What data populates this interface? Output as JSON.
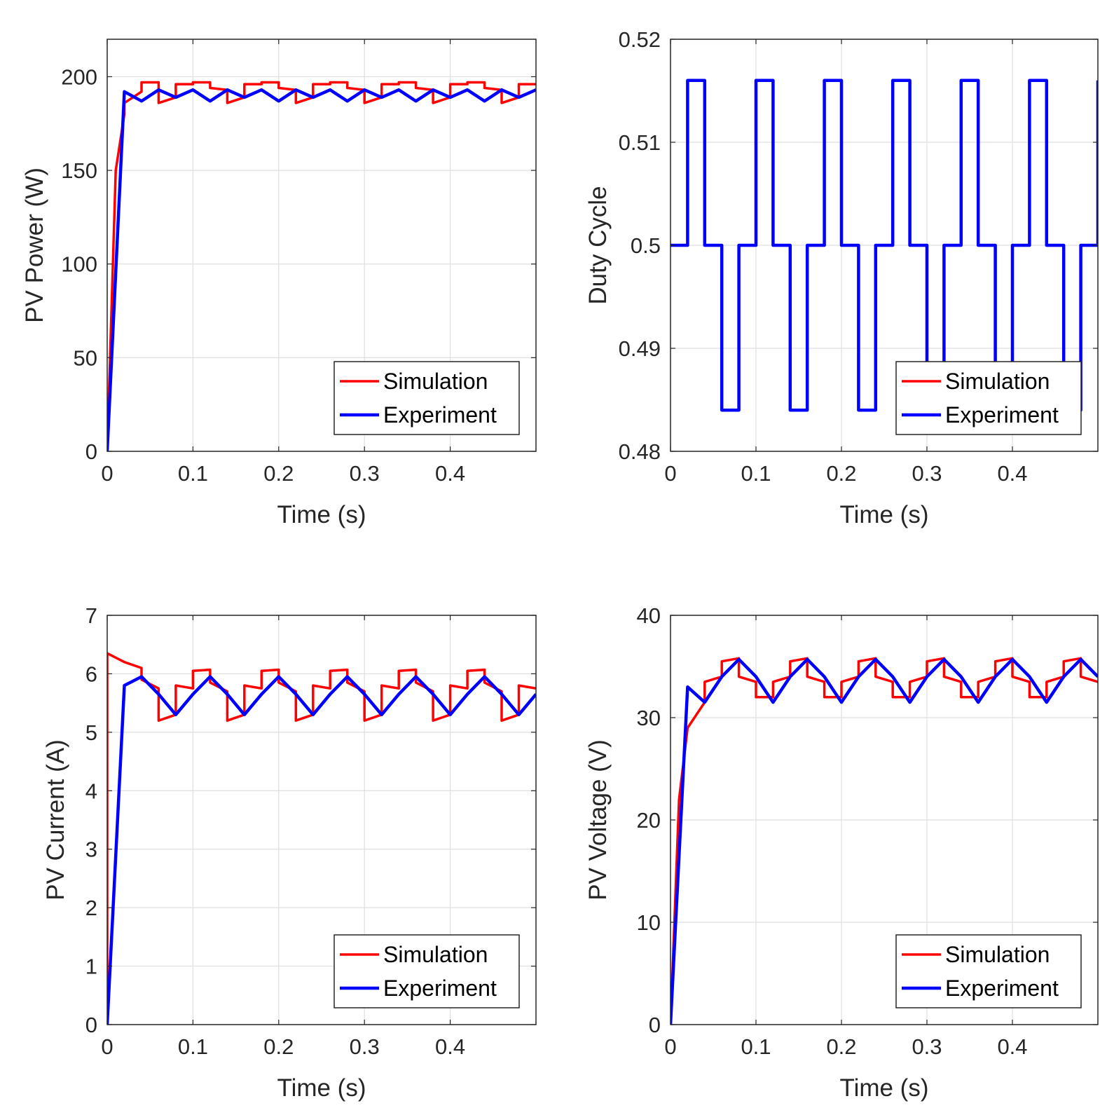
{
  "colors": {
    "simulation": "#ff0000",
    "experiment": "#0000ff"
  },
  "chart_data": [
    {
      "type": "line",
      "xlabel": "Time (s)",
      "ylabel": "PV Power (W)",
      "xlim": [
        0,
        0.5
      ],
      "ylim": [
        0,
        220
      ],
      "xticks": [
        0,
        0.1,
        0.2,
        0.3,
        0.4
      ],
      "xtick_labels": [
        "0",
        "0.1",
        "0.2",
        "0.3",
        "0.4"
      ],
      "yticks": [
        0,
        50,
        100,
        150,
        200
      ],
      "ytick_labels": [
        "0",
        "50",
        "100",
        "150",
        "200"
      ],
      "grid": true,
      "legend": "bottom-right",
      "step": false,
      "series": [
        {
          "name": "Simulation",
          "points": [
            [
              0,
              0
            ],
            [
              0.01,
              150
            ],
            [
              0.02,
              180
            ],
            [
              0.02,
              186
            ],
            [
              0.04,
              192
            ],
            [
              0.04,
              197
            ],
            [
              0.06,
              197
            ],
            [
              0.06,
              186
            ],
            [
              0.08,
              189
            ],
            [
              0.08,
              196
            ],
            [
              0.1,
              196
            ],
            [
              0.1,
              197
            ],
            [
              0.12,
              197
            ],
            [
              0.12,
              194
            ],
            [
              0.14,
              193
            ],
            [
              0.14,
              186
            ],
            [
              0.16,
              189
            ],
            [
              0.16,
              196
            ],
            [
              0.18,
              196
            ],
            [
              0.18,
              197
            ],
            [
              0.2,
              197
            ],
            [
              0.2,
              194
            ],
            [
              0.22,
              193
            ],
            [
              0.22,
              186
            ],
            [
              0.24,
              189
            ],
            [
              0.24,
              196
            ],
            [
              0.26,
              196
            ],
            [
              0.26,
              197
            ],
            [
              0.28,
              197
            ],
            [
              0.28,
              194
            ],
            [
              0.3,
              193
            ],
            [
              0.3,
              186
            ],
            [
              0.32,
              189
            ],
            [
              0.32,
              196
            ],
            [
              0.34,
              196
            ],
            [
              0.34,
              197
            ],
            [
              0.36,
              197
            ],
            [
              0.36,
              194
            ],
            [
              0.38,
              193
            ],
            [
              0.38,
              186
            ],
            [
              0.4,
              189
            ],
            [
              0.4,
              196
            ],
            [
              0.42,
              196
            ],
            [
              0.42,
              197
            ],
            [
              0.44,
              197
            ],
            [
              0.44,
              194
            ],
            [
              0.46,
              193
            ],
            [
              0.46,
              186
            ],
            [
              0.48,
              189
            ],
            [
              0.48,
              196
            ],
            [
              0.5,
              196
            ]
          ]
        },
        {
          "name": "Experiment",
          "x": [
            0,
            0.02,
            0.04,
            0.06,
            0.08,
            0.1,
            0.12,
            0.14,
            0.16,
            0.18,
            0.2,
            0.22,
            0.24,
            0.26,
            0.28,
            0.3,
            0.32,
            0.34,
            0.36,
            0.38,
            0.4,
            0.42,
            0.44,
            0.46,
            0.48,
            0.5
          ],
          "values": [
            0,
            192,
            187,
            193,
            189,
            193,
            187,
            193,
            189,
            193,
            187,
            193,
            189,
            193,
            187,
            193,
            189,
            193,
            187,
            193,
            189,
            193,
            187,
            193,
            189,
            193
          ]
        }
      ]
    },
    {
      "type": "line",
      "xlabel": "Time (s)",
      "ylabel": "Duty Cycle",
      "xlim": [
        0,
        0.5
      ],
      "ylim": [
        0.48,
        0.52
      ],
      "xticks": [
        0,
        0.1,
        0.2,
        0.3,
        0.4
      ],
      "xtick_labels": [
        "0",
        "0.1",
        "0.2",
        "0.3",
        "0.4"
      ],
      "yticks": [
        0.48,
        0.49,
        0.5,
        0.51,
        0.52
      ],
      "ytick_labels": [
        "0.48",
        "0.49",
        "0.5",
        "0.51",
        "0.52"
      ],
      "grid": true,
      "legend": "bottom-right",
      "step": true,
      "series": [
        {
          "name": "Simulation",
          "x": [
            0,
            0.02,
            0.04,
            0.06,
            0.08,
            0.1,
            0.12,
            0.14,
            0.16,
            0.18,
            0.2,
            0.22,
            0.24,
            0.26,
            0.28,
            0.3,
            0.32,
            0.34,
            0.36,
            0.38,
            0.4,
            0.42,
            0.44,
            0.46,
            0.48,
            0.5
          ],
          "values": [
            0.5,
            0.516,
            0.5,
            0.484,
            0.5,
            0.516,
            0.5,
            0.484,
            0.5,
            0.516,
            0.5,
            0.484,
            0.5,
            0.516,
            0.5,
            0.484,
            0.5,
            0.516,
            0.5,
            0.484,
            0.5,
            0.516,
            0.5,
            0.484,
            0.5,
            0.5
          ]
        },
        {
          "name": "Experiment",
          "x": [
            0,
            0.02,
            0.04,
            0.06,
            0.08,
            0.1,
            0.12,
            0.14,
            0.16,
            0.18,
            0.2,
            0.22,
            0.24,
            0.26,
            0.28,
            0.3,
            0.32,
            0.34,
            0.36,
            0.38,
            0.4,
            0.42,
            0.44,
            0.46,
            0.48,
            0.5
          ],
          "values": [
            0.5,
            0.516,
            0.5,
            0.484,
            0.5,
            0.516,
            0.5,
            0.484,
            0.5,
            0.516,
            0.5,
            0.484,
            0.5,
            0.516,
            0.5,
            0.484,
            0.5,
            0.516,
            0.5,
            0.484,
            0.5,
            0.516,
            0.5,
            0.484,
            0.5,
            0.516
          ]
        }
      ]
    },
    {
      "type": "line",
      "xlabel": "Time (s)",
      "ylabel": "PV Current (A)",
      "xlim": [
        0,
        0.5
      ],
      "ylim": [
        0,
        7
      ],
      "xticks": [
        0,
        0.1,
        0.2,
        0.3,
        0.4
      ],
      "xtick_labels": [
        "0",
        "0.1",
        "0.2",
        "0.3",
        "0.4"
      ],
      "yticks": [
        0,
        1,
        2,
        3,
        4,
        5,
        6,
        7
      ],
      "ytick_labels": [
        "0",
        "1",
        "2",
        "3",
        "4",
        "5",
        "6",
        "7"
      ],
      "grid": true,
      "legend": "bottom-right",
      "step": false,
      "series": [
        {
          "name": "Simulation",
          "points": [
            [
              0,
              0
            ],
            [
              0,
              6.35
            ],
            [
              0.02,
              6.2
            ],
            [
              0.04,
              6.1
            ],
            [
              0.04,
              5.9
            ],
            [
              0.06,
              5.75
            ],
            [
              0.06,
              5.2
            ],
            [
              0.08,
              5.3
            ],
            [
              0.08,
              5.8
            ],
            [
              0.1,
              5.75
            ],
            [
              0.1,
              6.05
            ],
            [
              0.12,
              6.07
            ],
            [
              0.12,
              5.85
            ],
            [
              0.14,
              5.7
            ],
            [
              0.14,
              5.2
            ],
            [
              0.16,
              5.3
            ],
            [
              0.16,
              5.8
            ],
            [
              0.18,
              5.75
            ],
            [
              0.18,
              6.05
            ],
            [
              0.2,
              6.07
            ],
            [
              0.2,
              5.85
            ],
            [
              0.22,
              5.7
            ],
            [
              0.22,
              5.2
            ],
            [
              0.24,
              5.3
            ],
            [
              0.24,
              5.8
            ],
            [
              0.26,
              5.75
            ],
            [
              0.26,
              6.05
            ],
            [
              0.28,
              6.07
            ],
            [
              0.28,
              5.85
            ],
            [
              0.3,
              5.7
            ],
            [
              0.3,
              5.2
            ],
            [
              0.32,
              5.3
            ],
            [
              0.32,
              5.8
            ],
            [
              0.34,
              5.75
            ],
            [
              0.34,
              6.05
            ],
            [
              0.36,
              6.07
            ],
            [
              0.36,
              5.85
            ],
            [
              0.38,
              5.7
            ],
            [
              0.38,
              5.2
            ],
            [
              0.4,
              5.3
            ],
            [
              0.4,
              5.8
            ],
            [
              0.42,
              5.75
            ],
            [
              0.42,
              6.05
            ],
            [
              0.44,
              6.07
            ],
            [
              0.44,
              5.85
            ],
            [
              0.46,
              5.7
            ],
            [
              0.46,
              5.2
            ],
            [
              0.48,
              5.3
            ],
            [
              0.48,
              5.8
            ],
            [
              0.5,
              5.75
            ]
          ]
        },
        {
          "name": "Experiment",
          "x": [
            0,
            0.02,
            0.04,
            0.06,
            0.08,
            0.1,
            0.12,
            0.14,
            0.16,
            0.18,
            0.2,
            0.22,
            0.24,
            0.26,
            0.28,
            0.3,
            0.32,
            0.34,
            0.36,
            0.38,
            0.4,
            0.42,
            0.44,
            0.46,
            0.48,
            0.5
          ],
          "values": [
            0,
            5.8,
            5.95,
            5.65,
            5.3,
            5.65,
            5.95,
            5.65,
            5.3,
            5.65,
            5.95,
            5.65,
            5.3,
            5.65,
            5.95,
            5.65,
            5.3,
            5.65,
            5.95,
            5.65,
            5.3,
            5.65,
            5.95,
            5.65,
            5.3,
            5.65
          ]
        }
      ]
    },
    {
      "type": "line",
      "xlabel": "Time (s)",
      "ylabel": "PV Voltage (V)",
      "xlim": [
        0,
        0.5
      ],
      "ylim": [
        0,
        40
      ],
      "xticks": [
        0,
        0.1,
        0.2,
        0.3,
        0.4
      ],
      "xtick_labels": [
        "0",
        "0.1",
        "0.2",
        "0.3",
        "0.4"
      ],
      "yticks": [
        0,
        10,
        20,
        30,
        40
      ],
      "ytick_labels": [
        "0",
        "10",
        "20",
        "30",
        "40"
      ],
      "grid": true,
      "legend": "bottom-right",
      "step": false,
      "series": [
        {
          "name": "Simulation",
          "points": [
            [
              0,
              0
            ],
            [
              0.01,
              22
            ],
            [
              0.02,
              29
            ],
            [
              0.04,
              31.5
            ],
            [
              0.04,
              33.5
            ],
            [
              0.06,
              34
            ],
            [
              0.06,
              35.5
            ],
            [
              0.08,
              35.8
            ],
            [
              0.08,
              34
            ],
            [
              0.1,
              33.5
            ],
            [
              0.1,
              32
            ],
            [
              0.12,
              32
            ],
            [
              0.12,
              33.5
            ],
            [
              0.14,
              34
            ],
            [
              0.14,
              35.5
            ],
            [
              0.16,
              35.8
            ],
            [
              0.16,
              34
            ],
            [
              0.18,
              33.5
            ],
            [
              0.18,
              32
            ],
            [
              0.2,
              32
            ],
            [
              0.2,
              33.5
            ],
            [
              0.22,
              34
            ],
            [
              0.22,
              35.5
            ],
            [
              0.24,
              35.8
            ],
            [
              0.24,
              34
            ],
            [
              0.26,
              33.5
            ],
            [
              0.26,
              32
            ],
            [
              0.28,
              32
            ],
            [
              0.28,
              33.5
            ],
            [
              0.3,
              34
            ],
            [
              0.3,
              35.5
            ],
            [
              0.32,
              35.8
            ],
            [
              0.32,
              34
            ],
            [
              0.34,
              33.5
            ],
            [
              0.34,
              32
            ],
            [
              0.36,
              32
            ],
            [
              0.36,
              33.5
            ],
            [
              0.38,
              34
            ],
            [
              0.38,
              35.5
            ],
            [
              0.4,
              35.8
            ],
            [
              0.4,
              34
            ],
            [
              0.42,
              33.5
            ],
            [
              0.42,
              32
            ],
            [
              0.44,
              32
            ],
            [
              0.44,
              33.5
            ],
            [
              0.46,
              34
            ],
            [
              0.46,
              35.5
            ],
            [
              0.48,
              35.8
            ],
            [
              0.48,
              34
            ],
            [
              0.5,
              33.5
            ]
          ]
        },
        {
          "name": "Experiment",
          "x": [
            0,
            0.02,
            0.04,
            0.06,
            0.08,
            0.1,
            0.12,
            0.14,
            0.16,
            0.18,
            0.2,
            0.22,
            0.24,
            0.26,
            0.28,
            0.3,
            0.32,
            0.34,
            0.36,
            0.38,
            0.4,
            0.42,
            0.44,
            0.46,
            0.48,
            0.5
          ],
          "values": [
            0,
            33,
            31.5,
            34,
            35.7,
            34,
            31.5,
            34,
            35.7,
            34,
            31.5,
            34,
            35.7,
            34,
            31.5,
            34,
            35.7,
            34,
            31.5,
            34,
            35.7,
            34,
            31.5,
            34,
            35.7,
            34
          ]
        }
      ]
    }
  ]
}
